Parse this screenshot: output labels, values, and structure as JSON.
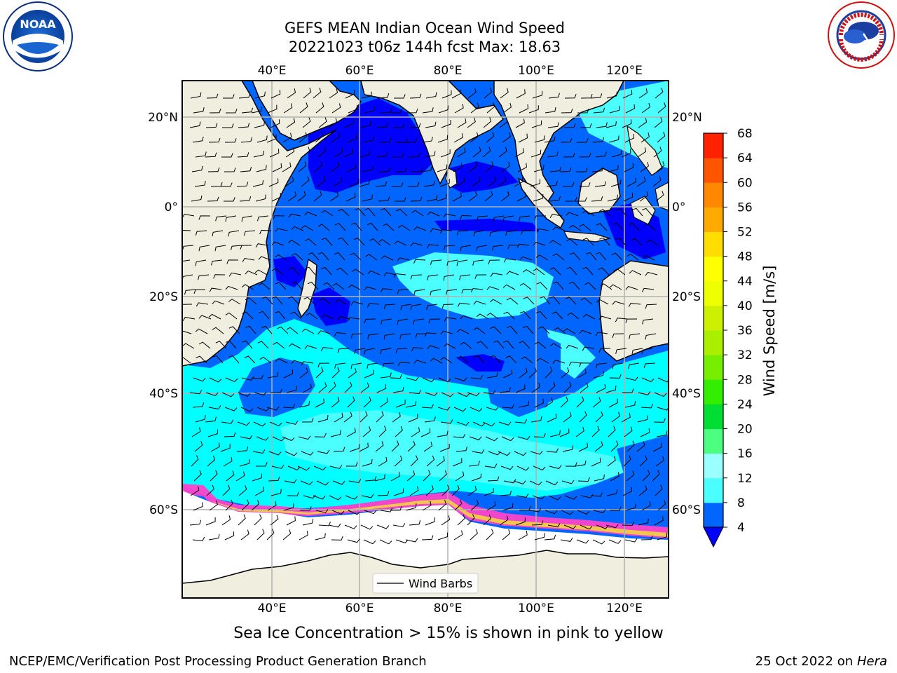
{
  "title": {
    "line1": "GEFS MEAN Indian Ocean Wind Speed",
    "line2": "20221023 t06z 144h fcst   Max: 18.63"
  },
  "axes": {
    "lon_labels": [
      "40°E",
      "60°E",
      "80°E",
      "100°E",
      "120°E"
    ],
    "lat_labels": [
      "20°N",
      "0°",
      "20°S",
      "40°S",
      "60°S"
    ]
  },
  "legend": {
    "label": "Wind Barbs"
  },
  "colorbar": {
    "label": "Wind Speed [m/s]",
    "ticks": [
      "4",
      "8",
      "12",
      "16",
      "20",
      "24",
      "28",
      "32",
      "36",
      "40",
      "44",
      "48",
      "52",
      "56",
      "60",
      "64",
      "68"
    ],
    "colors": [
      "#0066ff",
      "#00ffff",
      "#4cffff",
      "#99ffff",
      "#4dff80",
      "#00dd33",
      "#33ee00",
      "#77ee00",
      "#aaee00",
      "#ccf000",
      "#eeff00",
      "#ffff00",
      "#ffdd00",
      "#ffaa00",
      "#ff8800",
      "#ff5500",
      "#ff2200",
      "#ff0000"
    ],
    "under_color": "#0000ff"
  },
  "subtitle": "Sea Ice Concentration > 15% is shown in pink to yellow",
  "footer": {
    "left": "NCEP/EMC/Verification Post Processing Product Generation Branch",
    "date": "25 Oct 2022 on",
    "machine": "Hera"
  },
  "logos": {
    "noaa": "NOAA",
    "nws": "NATIONAL WEATHER SERVICE"
  }
}
